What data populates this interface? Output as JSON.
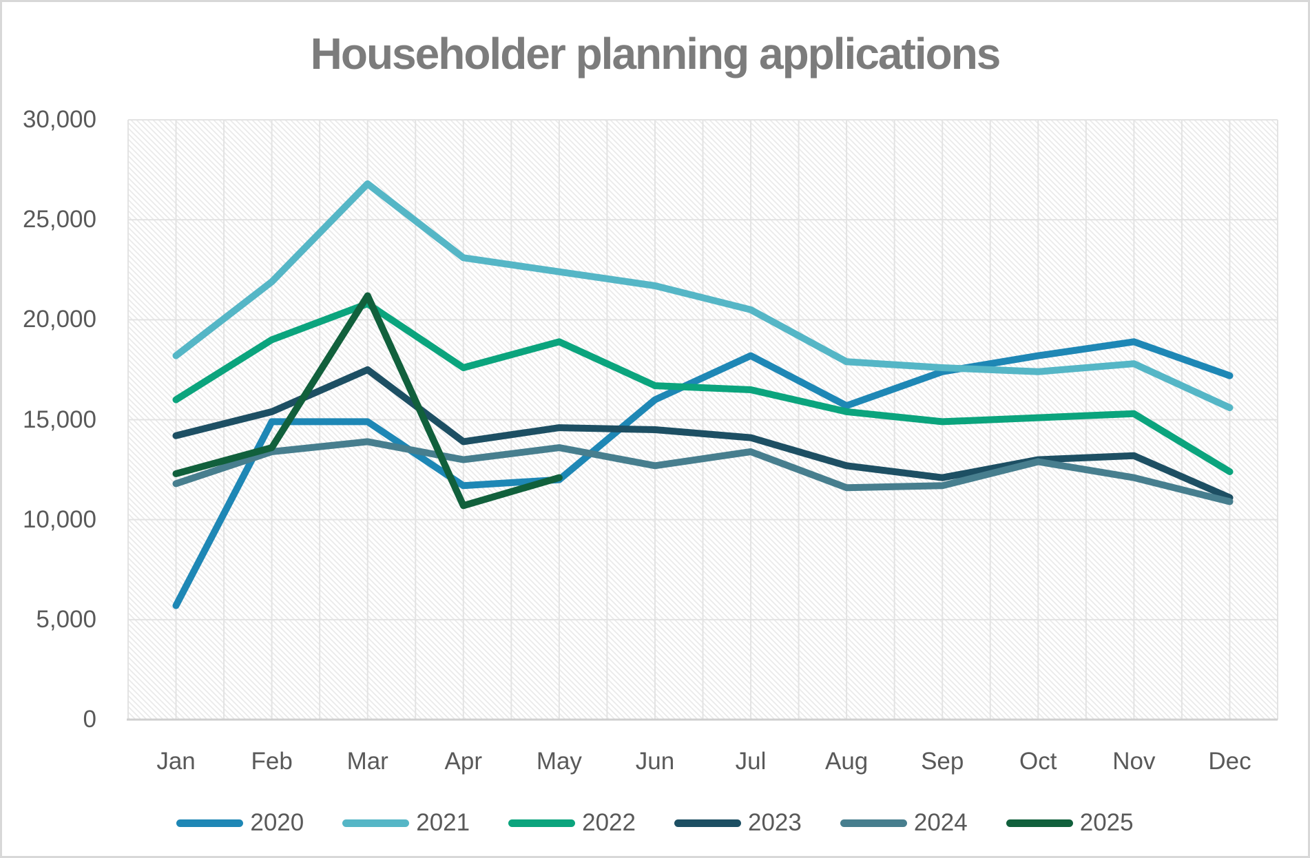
{
  "title": "Householder planning applications",
  "chart_data": {
    "type": "line",
    "title": "Householder planning applications",
    "categories": [
      "Jan",
      "Feb",
      "Mar",
      "Apr",
      "May",
      "Jun",
      "Jul",
      "Aug",
      "Sep",
      "Oct",
      "Nov",
      "Dec"
    ],
    "series": [
      {
        "name": "2020",
        "color": "#1e87b5",
        "values": [
          5700,
          14900,
          14900,
          11700,
          12000,
          16000,
          18200,
          15700,
          17400,
          18200,
          18900,
          17200
        ]
      },
      {
        "name": "2021",
        "color": "#55b6c6",
        "values": [
          18200,
          21900,
          26800,
          23100,
          22400,
          21700,
          20500,
          17900,
          17600,
          17400,
          17800,
          15600
        ]
      },
      {
        "name": "2022",
        "color": "#0ba47d",
        "values": [
          16000,
          19000,
          20800,
          17600,
          18900,
          16700,
          16500,
          15400,
          14900,
          15100,
          15300,
          12400
        ]
      },
      {
        "name": "2023",
        "color": "#1d4f63",
        "values": [
          14200,
          15400,
          17500,
          13900,
          14600,
          14500,
          14100,
          12700,
          12100,
          13000,
          13200,
          11100
        ]
      },
      {
        "name": "2024",
        "color": "#477e8e",
        "values": [
          11800,
          13400,
          13900,
          13000,
          13600,
          12700,
          13400,
          11600,
          11700,
          12900,
          12100,
          10900
        ]
      },
      {
        "name": "2025",
        "color": "#11603c",
        "values": [
          12300,
          13600,
          21200,
          10700,
          12100,
          null,
          null,
          null,
          null,
          null,
          null,
          null
        ]
      }
    ],
    "ylim": [
      0,
      30000
    ],
    "ytick_step": 5000,
    "ytick_labels": [
      "0",
      "5,000",
      "10,000",
      "15,000",
      "20,000",
      "25,000",
      "30,000"
    ],
    "grid": true,
    "plot_background": "diagonal-hatch",
    "legend_position": "bottom",
    "xlabel": "",
    "ylabel": ""
  },
  "style_colors": {
    "title_text": "#7c7c7c",
    "axis_text": "#595959",
    "gridline": "#e3e3e3",
    "axis_line": "#cfcfcf",
    "hatch": "#eaeaea",
    "frame_border": "#d8d8d8"
  }
}
